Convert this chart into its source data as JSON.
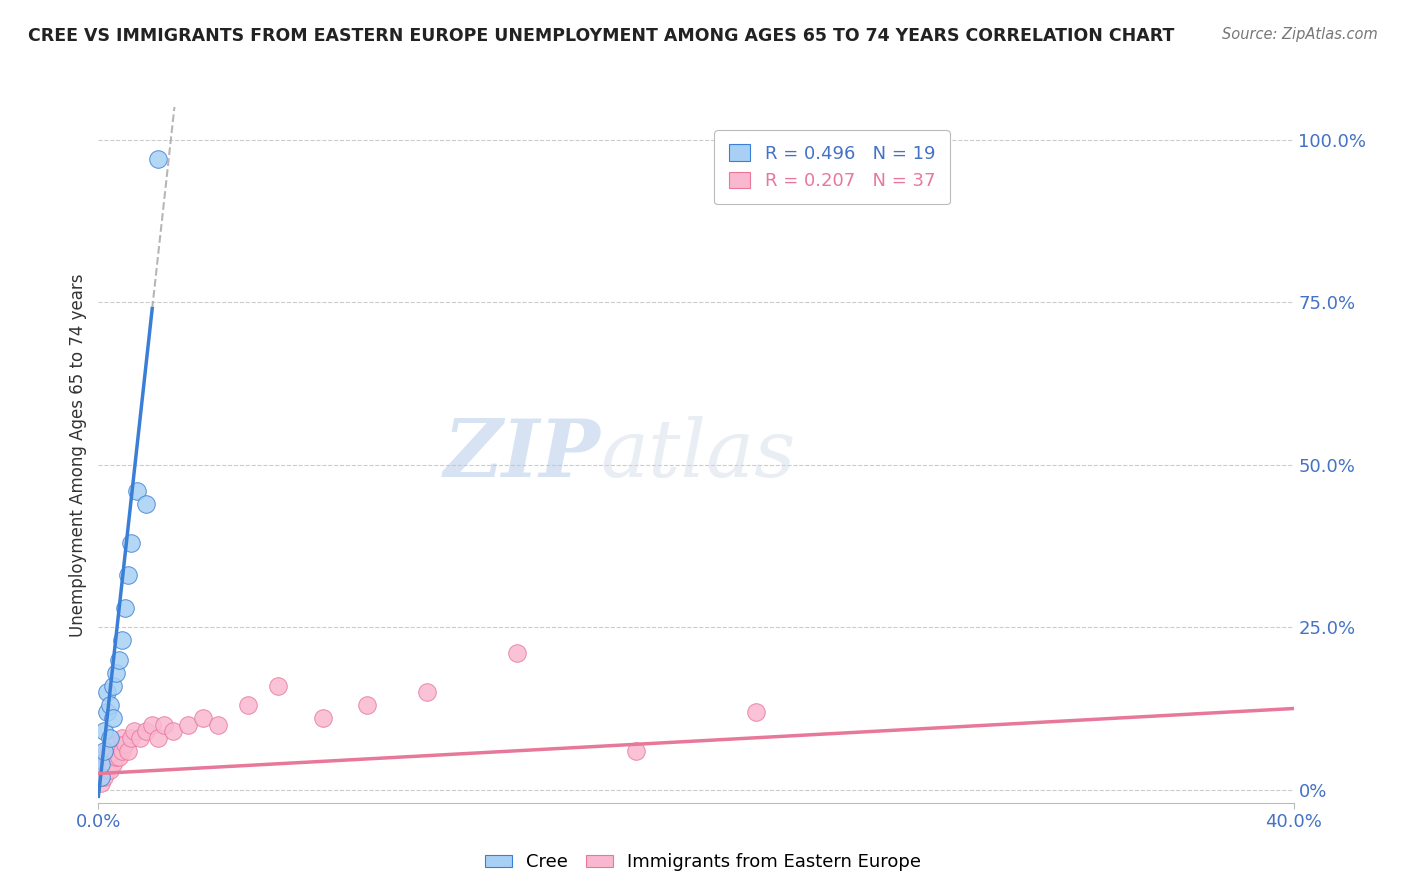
{
  "title": "CREE VS IMMIGRANTS FROM EASTERN EUROPE UNEMPLOYMENT AMONG AGES 65 TO 74 YEARS CORRELATION CHART",
  "source": "Source: ZipAtlas.com",
  "ylabel": "Unemployment Among Ages 65 to 74 years",
  "ytick_labels": [
    "0%",
    "25.0%",
    "50.0%",
    "75.0%",
    "100.0%"
  ],
  "ytick_values": [
    0.0,
    0.25,
    0.5,
    0.75,
    1.0
  ],
  "xmin": 0.0,
  "xmax": 0.4,
  "ymin": -0.02,
  "ymax": 1.05,
  "cree_R": 0.496,
  "cree_N": 19,
  "immigrants_R": 0.207,
  "immigrants_N": 37,
  "cree_color": "#a8d0f5",
  "immigrants_color": "#f9b8d0",
  "cree_line_color": "#3a7fd5",
  "immigrants_line_color": "#e8789a",
  "watermark_zip": "ZIP",
  "watermark_atlas": "atlas",
  "cree_x": [
    0.001,
    0.001,
    0.002,
    0.002,
    0.003,
    0.003,
    0.004,
    0.004,
    0.005,
    0.005,
    0.006,
    0.007,
    0.008,
    0.009,
    0.01,
    0.011,
    0.013,
    0.016,
    0.02
  ],
  "cree_y": [
    0.02,
    0.04,
    0.06,
    0.09,
    0.12,
    0.15,
    0.08,
    0.13,
    0.16,
    0.11,
    0.18,
    0.2,
    0.23,
    0.28,
    0.33,
    0.38,
    0.46,
    0.44,
    0.97
  ],
  "immigrants_x": [
    0.001,
    0.001,
    0.002,
    0.002,
    0.003,
    0.003,
    0.003,
    0.004,
    0.004,
    0.005,
    0.005,
    0.006,
    0.006,
    0.007,
    0.008,
    0.008,
    0.009,
    0.01,
    0.011,
    0.012,
    0.014,
    0.016,
    0.018,
    0.02,
    0.022,
    0.025,
    0.03,
    0.035,
    0.04,
    0.05,
    0.06,
    0.075,
    0.09,
    0.11,
    0.14,
    0.18,
    0.22
  ],
  "immigrants_y": [
    0.01,
    0.03,
    0.02,
    0.04,
    0.03,
    0.05,
    0.06,
    0.03,
    0.05,
    0.04,
    0.06,
    0.05,
    0.07,
    0.05,
    0.06,
    0.08,
    0.07,
    0.06,
    0.08,
    0.09,
    0.08,
    0.09,
    0.1,
    0.08,
    0.1,
    0.09,
    0.1,
    0.11,
    0.1,
    0.13,
    0.16,
    0.11,
    0.13,
    0.15,
    0.21,
    0.06,
    0.12
  ],
  "cree_trend_xmax": 0.022,
  "immigrants_trend_end_y": 0.14
}
